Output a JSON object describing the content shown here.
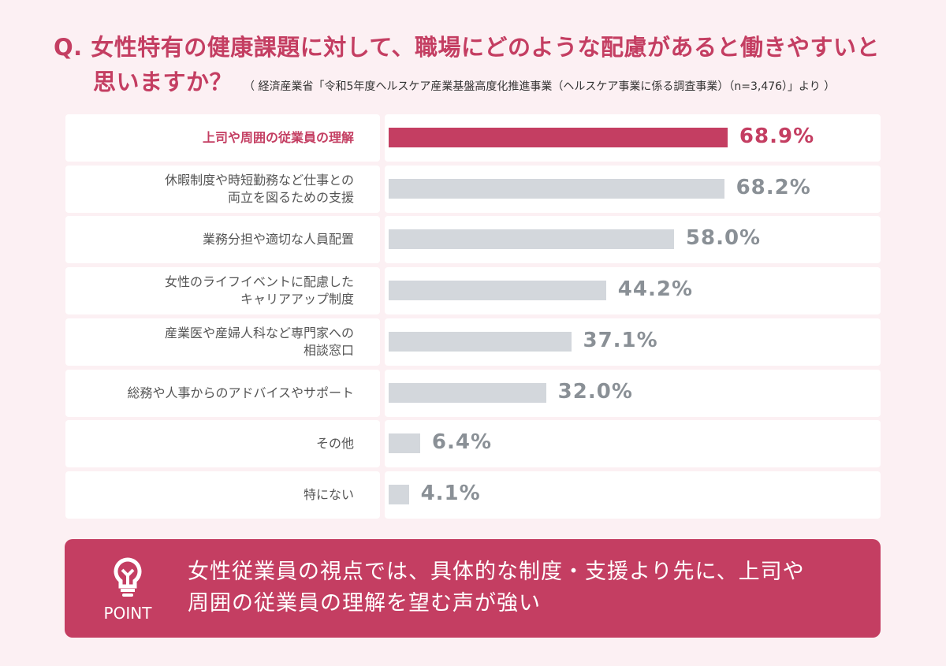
{
  "title": {
    "line1": "Q. 女性特有の健康課題に対して、職場にどのような配慮があると働きやすいと",
    "line2": "思いますか？",
    "source": "（ 経済産業省「令和5年度ヘルスケア産業基盤高度化推進事業（ヘルスケア事業に係る調査事業）（n=3,476）」より ）"
  },
  "chart_data": {
    "type": "bar",
    "orientation": "horizontal",
    "title": "女性特有の健康課題に対して、職場にどのような配慮があると働きやすいと思いますか？",
    "categories": [
      "上司や周囲の従業員の理解",
      "休暇制度や時短勤務など仕事との\n両立を図るための支援",
      "業務分担や適切な人員配置",
      "女性のライフイベントに配慮した\nキャリアアップ制度",
      "産業医や産婦人科など専門家への\n相談窓口",
      "総務や人事からのアドバイスやサポート",
      "その他",
      "特にない"
    ],
    "values": [
      68.9,
      68.2,
      58.0,
      44.2,
      37.1,
      32.0,
      6.4,
      4.1
    ],
    "value_labels": [
      "68.9%",
      "68.2%",
      "58.0%",
      "44.2%",
      "37.1%",
      "32.0%",
      "6.4%",
      "4.1%"
    ],
    "highlight_index": 0,
    "xlim": [
      0,
      100
    ],
    "unit": "%",
    "colors": {
      "highlight": "#c43e62",
      "default": "#d3d7dc",
      "default_label": "#8a9096"
    }
  },
  "point": {
    "icon": "lightbulb-icon",
    "label": "POINT",
    "line1": "女性従業員の視点では、具体的な制度・支援より先に、上司や",
    "line2": "周囲の従業員の理解を望む声が強い"
  }
}
